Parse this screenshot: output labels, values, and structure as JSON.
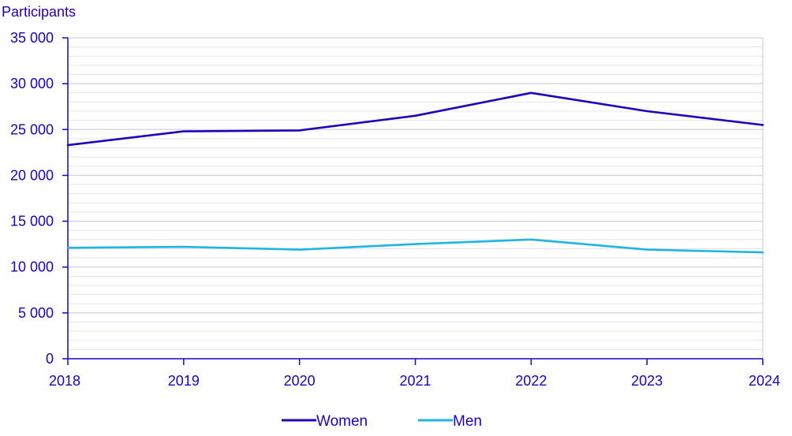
{
  "chart_data": {
    "type": "line",
    "ylabel": "Participants",
    "categories": [
      "2018",
      "2019",
      "2020",
      "2021",
      "2022",
      "2023",
      "2024"
    ],
    "yticks": [
      "0",
      "5 000",
      "10 000",
      "15 000",
      "20 000",
      "25 000",
      "30 000",
      "35 000"
    ],
    "ylim": [
      0,
      35000
    ],
    "grid": true,
    "legend_position": "bottom",
    "series": [
      {
        "name": "Women",
        "color": "#1e00be",
        "values": [
          23300,
          24800,
          24900,
          26500,
          29000,
          27000,
          25500
        ]
      },
      {
        "name": "Men",
        "color": "#1eb4e6",
        "values": [
          12100,
          12200,
          11900,
          12500,
          13000,
          11900,
          11600
        ]
      }
    ]
  },
  "colors": {
    "axis": "#1e00be",
    "grid": "#d2d2e6"
  }
}
